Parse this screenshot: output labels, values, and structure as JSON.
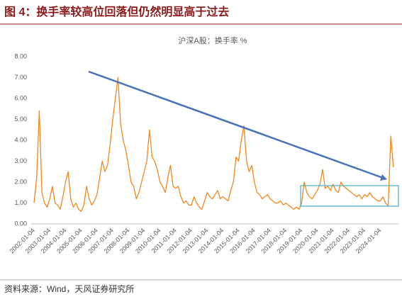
{
  "figure_title": "图 4：换手率较高位回落但仍然明显高于过去",
  "source": "资料来源：Wind，天风证券研究所",
  "chart_data": {
    "type": "line",
    "title": "沪深A股：换手率 %",
    "color": "#f0891d",
    "categories": [
      "2002-01-04",
      null,
      null,
      null,
      null,
      null,
      "2003-01-04",
      null,
      null,
      null,
      null,
      null,
      "2004-01-04",
      null,
      null,
      null,
      null,
      null,
      "2005-01-04",
      null,
      null,
      null,
      null,
      null,
      "2006-01-04",
      null,
      null,
      null,
      null,
      null,
      "2007-01-04",
      null,
      null,
      null,
      null,
      null,
      "2008-01-04",
      null,
      null,
      null,
      null,
      null,
      "2009-01-04",
      null,
      null,
      null,
      null,
      null,
      "2010-01-04",
      null,
      null,
      null,
      null,
      null,
      "2011-01-04",
      null,
      null,
      null,
      null,
      null,
      "2012-01-04",
      null,
      null,
      null,
      null,
      null,
      "2013-01-04",
      null,
      null,
      null,
      null,
      null,
      "2014-01-04",
      null,
      null,
      null,
      null,
      null,
      "2015-01-04",
      null,
      null,
      null,
      null,
      null,
      "2016-01-04",
      null,
      null,
      null,
      null,
      null,
      "2017-01-04",
      null,
      null,
      null,
      null,
      null,
      "2018-01-04",
      null,
      null,
      null,
      null,
      null,
      "2019-01-04",
      null,
      null,
      null,
      null,
      null,
      "2020-01-04",
      null,
      null,
      null,
      null,
      null,
      "2021-01-04",
      null,
      null,
      null,
      null,
      null,
      "2022-01-04",
      null,
      null,
      null,
      null,
      null,
      "2023-01-04",
      null,
      null,
      null,
      null,
      null,
      "2024-01-04",
      null,
      null,
      null,
      null,
      null
    ],
    "values": [
      1.0,
      2.2,
      5.4,
      1.5,
      1.0,
      0.8,
      1.2,
      1.8,
      1.0,
      0.9,
      0.7,
      1.3,
      2.0,
      2.5,
      1.2,
      0.8,
      1.0,
      0.7,
      0.6,
      0.9,
      1.8,
      1.2,
      0.9,
      1.1,
      1.4,
      2.2,
      3.0,
      2.5,
      2.8,
      3.8,
      5.0,
      6.0,
      7.0,
      4.8,
      4.0,
      3.5,
      2.8,
      2.0,
      1.8,
      1.2,
      1.5,
      2.0,
      2.5,
      3.0,
      4.5,
      3.2,
      3.0,
      2.6,
      2.0,
      1.8,
      1.5,
      2.2,
      2.8,
      1.8,
      1.7,
      1.8,
      1.3,
      1.0,
      1.1,
      0.9,
      0.9,
      1.3,
      1.0,
      0.8,
      0.7,
      1.1,
      1.5,
      1.3,
      1.2,
      1.4,
      1.6,
      1.2,
      1.3,
      1.2,
      1.1,
      1.6,
      2.0,
      3.2,
      3.0,
      4.0,
      4.7,
      3.0,
      2.5,
      2.8,
      2.0,
      1.5,
      1.4,
      1.2,
      1.3,
      1.4,
      1.2,
      1.1,
      1.0,
      1.0,
      1.1,
      0.9,
      1.0,
      0.9,
      0.8,
      0.7,
      0.8,
      0.7,
      1.0,
      2.0,
      1.5,
      1.3,
      1.2,
      1.4,
      1.6,
      1.9,
      2.6,
      1.7,
      1.8,
      1.6,
      1.9,
      1.6,
      1.5,
      2.0,
      1.8,
      1.7,
      1.6,
      1.5,
      1.4,
      1.3,
      1.4,
      1.2,
      1.4,
      1.3,
      1.5,
      1.3,
      1.2,
      1.1,
      1.1,
      1.3,
      1.0,
      0.85,
      4.2,
      2.7
    ],
    "ylim": [
      0,
      8
    ],
    "yticks": [
      {
        "value": 0,
        "label": "0.00"
      },
      {
        "value": 1,
        "label": "1.00"
      },
      {
        "value": 2,
        "label": "2.00"
      },
      {
        "value": 3,
        "label": "3.00"
      },
      {
        "value": 4,
        "label": "4.00"
      },
      {
        "value": 5,
        "label": "5.00"
      },
      {
        "value": 6,
        "label": "6.00"
      },
      {
        "value": 7,
        "label": "7.00"
      },
      {
        "value": 8,
        "label": "8.00"
      }
    ]
  }
}
